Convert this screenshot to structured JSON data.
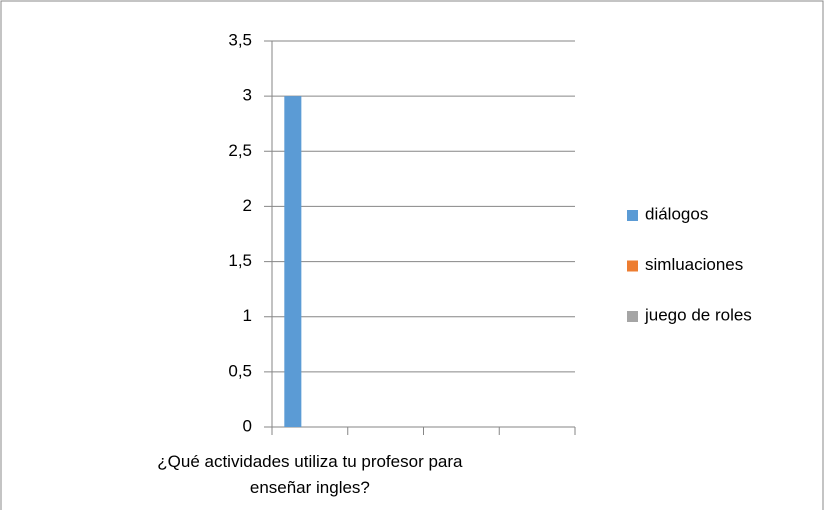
{
  "chart_data": {
    "type": "bar",
    "categories": [
      "¿Qué actividades utiliza tu profesor para enseñar ingles?",
      null,
      null,
      null
    ],
    "series": [
      {
        "name": "diálogos",
        "color": "#5b9bd5",
        "values": [
          3,
          null,
          null,
          null
        ]
      },
      {
        "name": "simluaciones",
        "color": "#ed7d31",
        "values": [
          0,
          null,
          null,
          null
        ]
      },
      {
        "name": "juego de roles",
        "color": "#a5a5a5",
        "values": [
          0,
          null,
          null,
          null
        ]
      }
    ],
    "ylim": [
      0,
      3.5
    ],
    "yticks": [
      0,
      {
        "value": 0.5,
        "label": "0,5"
      },
      1,
      {
        "value": 1.5,
        "label": "1,5"
      },
      2,
      {
        "value": 2.5,
        "label": "2,5"
      },
      3,
      {
        "value": 3.5,
        "label": "3,5"
      }
    ],
    "grid": true,
    "legend": "right"
  }
}
